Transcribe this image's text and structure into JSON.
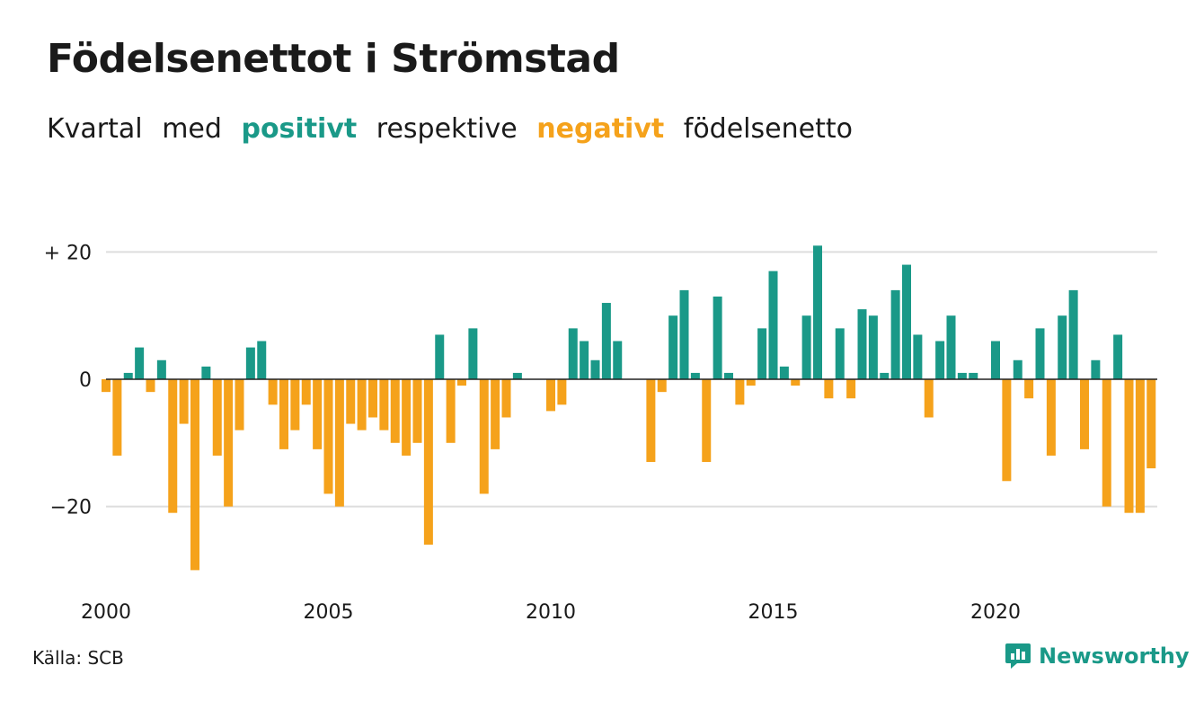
{
  "header": {
    "title": "Födelsenettot i Strömstad",
    "subtitle": {
      "word_kvartal": "Kvartal",
      "word_med": "med",
      "word_positivt": "positivt",
      "word_respektive": "respektive",
      "word_negativt": "negativt",
      "word_fodelsenetto": "födelsenetto"
    }
  },
  "footer": {
    "source": "Källa: SCB",
    "brand": "Newsworthy"
  },
  "colors": {
    "positive": "#1a9988",
    "negative": "#f5a21b",
    "grid": "#dddddd",
    "zero_line": "#222222"
  },
  "chart_data": {
    "type": "bar",
    "title": "Födelsenettot i Strömstad",
    "subtitle": "Kvartal med positivt respektive negativt födelsenetto",
    "xlabel": "",
    "ylabel": "",
    "x_start": 2000,
    "x_end": 2023.75,
    "ylim": [
      -30,
      30
    ],
    "y_ticks": [
      {
        "value": 20,
        "label": "+ 20"
      },
      {
        "value": 0,
        "label": "0"
      },
      {
        "value": -20,
        "label": "−20"
      }
    ],
    "x_ticks": [
      {
        "value": 2000,
        "label": "2000"
      },
      {
        "value": 2005,
        "label": "2005"
      },
      {
        "value": 2010,
        "label": "2010"
      },
      {
        "value": 2015,
        "label": "2015"
      },
      {
        "value": 2020,
        "label": "2020"
      }
    ],
    "grid": true,
    "legend": "none",
    "series": [
      {
        "values": [
          -2,
          -12,
          1,
          5,
          -2,
          3,
          -21,
          -7,
          -30,
          2,
          -12,
          -20,
          -8,
          5,
          6,
          -4,
          -11,
          -8,
          -4,
          -11,
          -18,
          -20,
          -7,
          -8,
          -6,
          -8,
          -10,
          -12,
          -10,
          -26,
          7,
          -10,
          -1,
          8,
          -18,
          -11,
          -6,
          1,
          0,
          0,
          -5,
          -4,
          8,
          6,
          3,
          12,
          6,
          0,
          0,
          -13,
          -2,
          10,
          14,
          1,
          -13,
          13,
          1,
          -4,
          -1,
          8,
          17,
          2,
          -1,
          10,
          21,
          -3,
          8,
          -3,
          11,
          10,
          1,
          14,
          18,
          7,
          -6,
          6,
          10,
          1,
          1,
          0,
          6,
          -16,
          3,
          -3,
          8,
          -12,
          10,
          14,
          -11,
          3,
          -20,
          7,
          -21,
          -21,
          -14
        ]
      }
    ]
  }
}
